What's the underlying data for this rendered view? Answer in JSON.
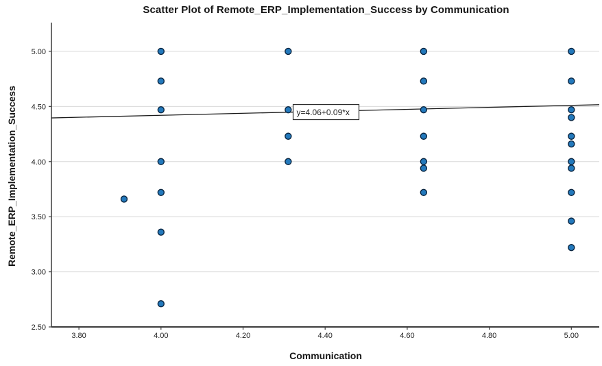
{
  "chart_data": {
    "type": "scatter",
    "title": "Scatter Plot of Remote_ERP_Implementation_Success by Communication",
    "xlabel": "Communication",
    "ylabel": "Remote_ERP_Implementation_Success",
    "x_ticks": [
      3.8,
      4.0,
      4.2,
      4.4,
      4.6,
      4.8,
      5.0
    ],
    "y_ticks": [
      2.5,
      3.0,
      3.5,
      4.0,
      4.5,
      5.0
    ],
    "xlim": [
      3.733,
      5.068
    ],
    "ylim": [
      2.5,
      5.242
    ],
    "grid": "horizontal-only",
    "legend": "none",
    "points": [
      [
        3.91,
        3.66
      ],
      [
        4.0,
        5.0
      ],
      [
        4.0,
        4.73
      ],
      [
        4.0,
        4.47
      ],
      [
        4.0,
        4.0
      ],
      [
        4.0,
        3.72
      ],
      [
        4.0,
        3.36
      ],
      [
        4.0,
        2.71
      ],
      [
        4.31,
        5.0
      ],
      [
        4.31,
        4.47
      ],
      [
        4.31,
        4.23
      ],
      [
        4.31,
        4.0
      ],
      [
        4.64,
        5.0
      ],
      [
        4.64,
        4.73
      ],
      [
        4.64,
        4.47
      ],
      [
        4.64,
        4.23
      ],
      [
        4.64,
        4.0
      ],
      [
        4.64,
        3.94
      ],
      [
        4.64,
        3.72
      ],
      [
        5.0,
        5.0
      ],
      [
        5.0,
        4.73
      ],
      [
        5.0,
        4.47
      ],
      [
        5.0,
        4.4
      ],
      [
        5.0,
        4.23
      ],
      [
        5.0,
        4.16
      ],
      [
        5.0,
        4.0
      ],
      [
        5.0,
        3.94
      ],
      [
        5.0,
        3.72
      ],
      [
        5.0,
        3.46
      ],
      [
        5.0,
        3.22
      ]
    ],
    "fit_line": {
      "label": "y=4.06+0.09*x",
      "intercept": 4.06,
      "slope": 0.09,
      "label_x": 4.322
    },
    "colors": {
      "point_fill": "#2379bc",
      "point_stroke": "#0a2540",
      "grid": "#d8d8d8",
      "axis": "#3c3c3c",
      "fit_line": "#1a1a1a",
      "text": "#1f1f1f",
      "annotation_bg": "#ffffff",
      "annotation_border": "#2b2b2b"
    }
  }
}
